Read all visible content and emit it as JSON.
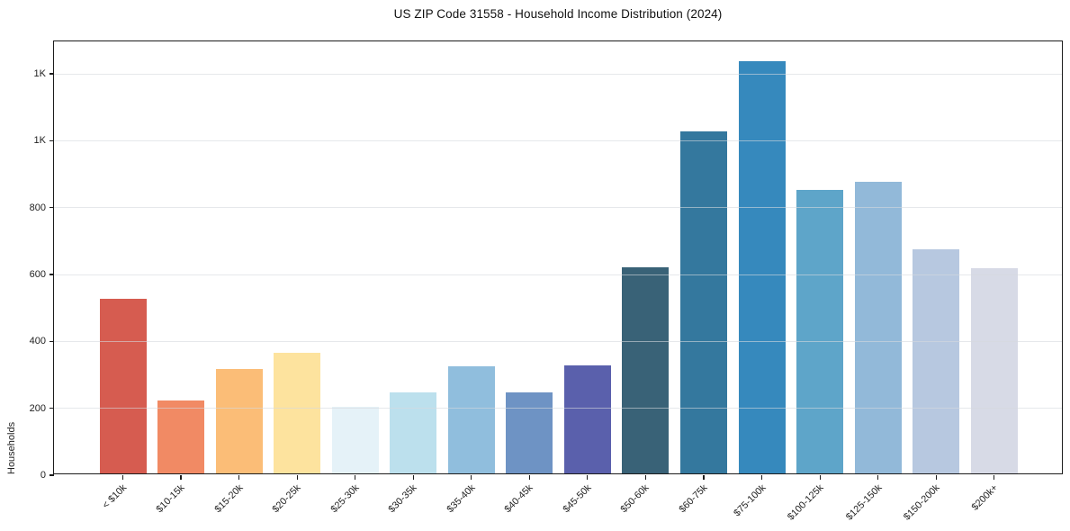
{
  "chart_data": {
    "type": "bar",
    "title": "US ZIP Code 31558 - Household Income Distribution (2024)",
    "xlabel": "",
    "ylabel": "Households",
    "categories": [
      "< $10k",
      "$10-15k",
      "$15-20k",
      "$20-25k",
      "$25-30k",
      "$30-35k",
      "$35-40k",
      "$40-45k",
      "$45-50k",
      "$50-60k",
      "$60-75k",
      "$75-100k",
      "$100-125k",
      "$125-150k",
      "$150-200k",
      "$200k+"
    ],
    "values": [
      522,
      217,
      312,
      360,
      198,
      242,
      320,
      242,
      322,
      615,
      1024,
      1233,
      849,
      871,
      669,
      614
    ],
    "bar_colors": [
      "#d65c50",
      "#f18a64",
      "#fbbd77",
      "#fde39e",
      "#e5f2f8",
      "#bce0ed",
      "#90bedd",
      "#6e93c4",
      "#5a60ac",
      "#396277",
      "#34789e",
      "#3689bd",
      "#5ea5c9",
      "#92b9d9",
      "#b7c8e0",
      "#d7dae6"
    ],
    "ylim": [
      0,
      1297
    ],
    "yticks": [
      {
        "value": 0,
        "label": "0"
      },
      {
        "value": 200,
        "label": "200"
      },
      {
        "value": 400,
        "label": "400"
      },
      {
        "value": 600,
        "label": "600"
      },
      {
        "value": 800,
        "label": "800"
      },
      {
        "value": 1000,
        "label": "1K"
      },
      {
        "value": 1200,
        "label": "1K"
      }
    ],
    "grid": "horizontal",
    "legend": "none"
  },
  "colors": {
    "background": "#ffffff",
    "spine": "#1c1c1c",
    "gridline": "rgba(213,216,221,0.6)",
    "text": "#222222"
  }
}
